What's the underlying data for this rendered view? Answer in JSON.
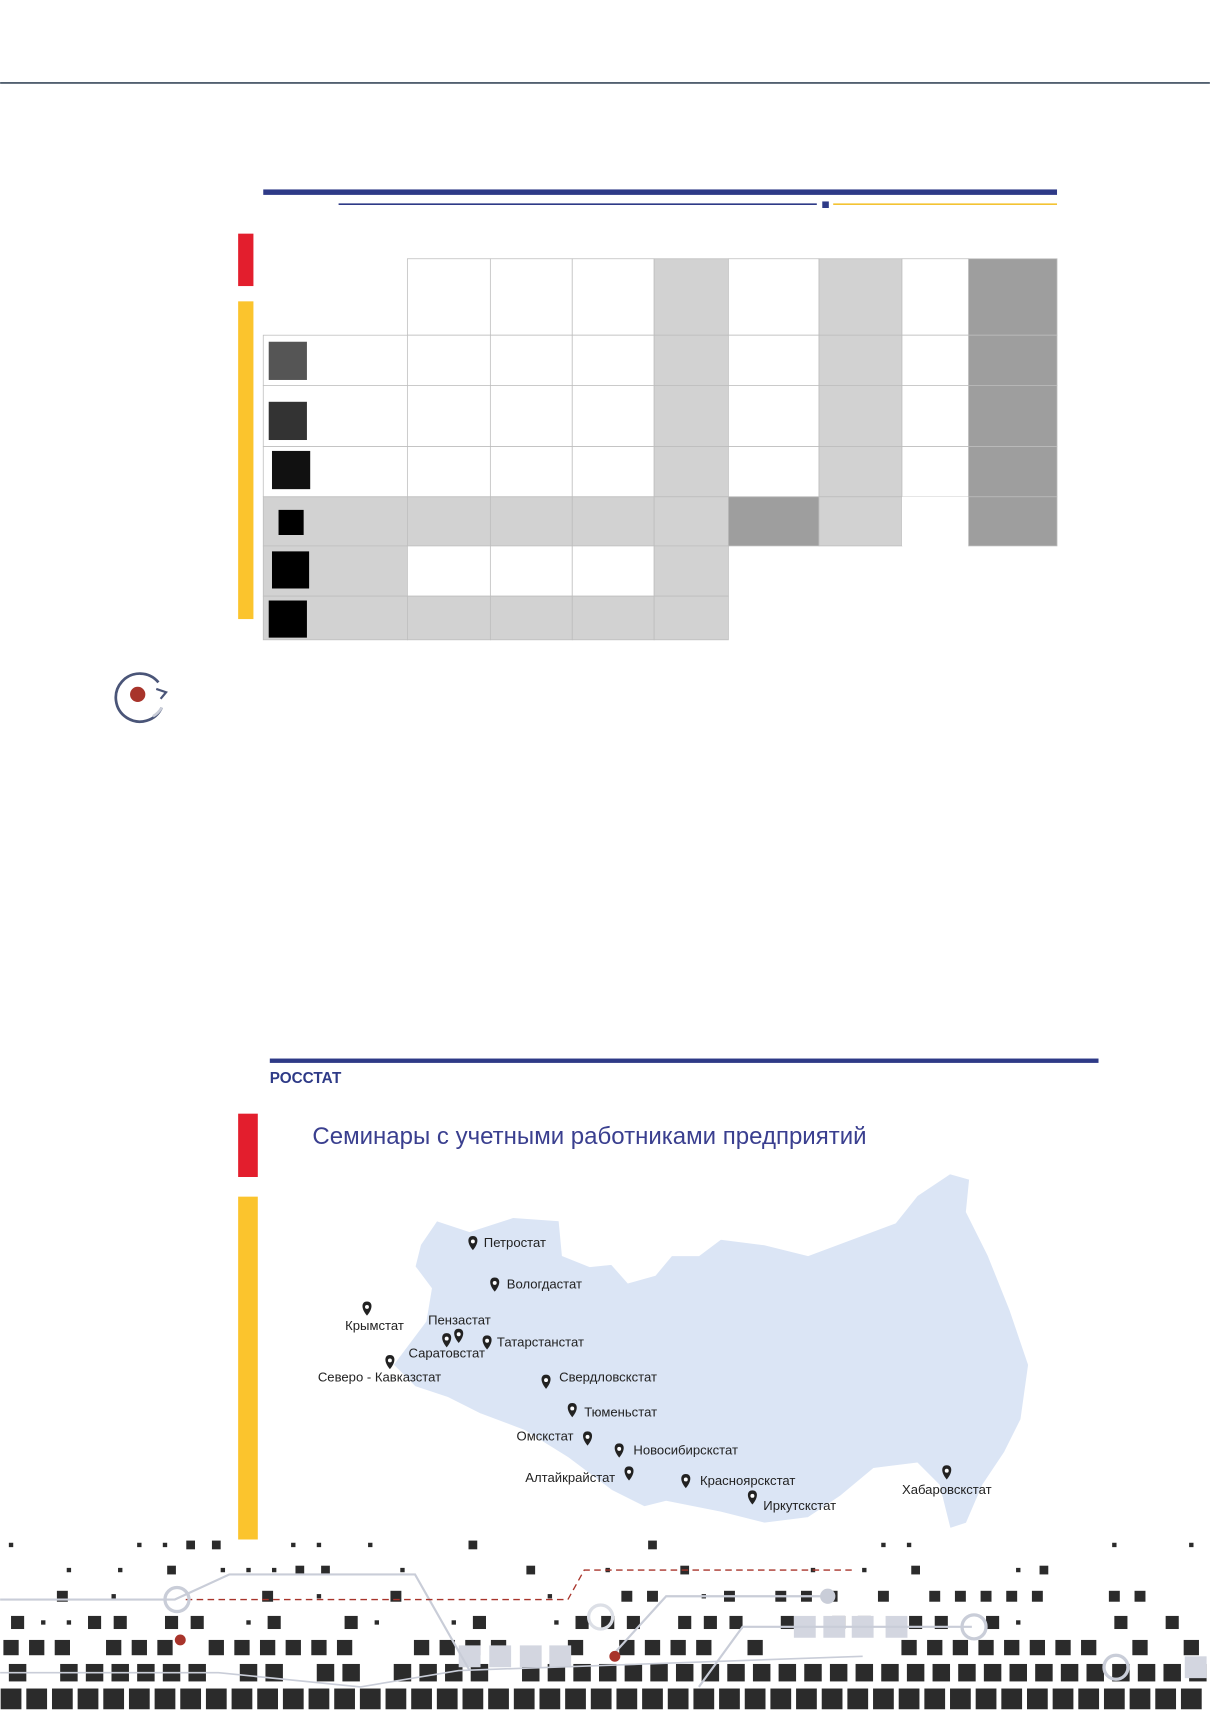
{
  "header": {
    "agency": "РОССТАТ"
  },
  "slide": {
    "title": "Семинары с учетными работниками предприятий"
  },
  "map": {
    "labels": [
      "Петростат",
      "Вологдастат",
      "Крымстат",
      "Пензастат",
      "Саратовстат",
      "Татарстанстат",
      "Северо - Кавказстат",
      "Свердловскстат",
      "Тюменьстат",
      "Омскстат",
      "Новосибирскстат",
      "Алтайкрайстат",
      "Красноярскстат",
      "Иркутскстат",
      "Хабаровскстат"
    ]
  }
}
